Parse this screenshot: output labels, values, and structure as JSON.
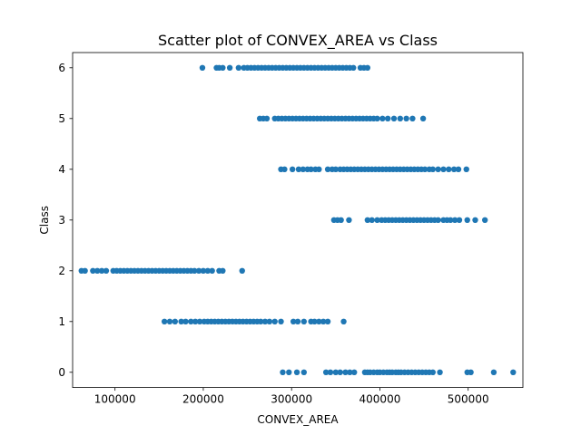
{
  "chart_data": {
    "type": "scatter",
    "title": "Scatter plot of CONVEX_AREA vs Class",
    "xlabel": "CONVEX_AREA",
    "ylabel": "Class",
    "xlim": [
      52000,
      562000
    ],
    "ylim": [
      -0.3,
      6.3
    ],
    "xticks": [
      100000,
      200000,
      300000,
      400000,
      500000
    ],
    "xtick_labels": [
      "100000",
      "200000",
      "300000",
      "400000",
      "500000"
    ],
    "yticks": [
      0,
      1,
      2,
      3,
      4,
      5,
      6
    ],
    "ytick_labels": [
      "0",
      "1",
      "2",
      "3",
      "4",
      "5",
      "6"
    ],
    "grid": false,
    "point_color": "#1f77b4",
    "series": [
      {
        "y": 0,
        "x": [
          290000,
          297000,
          306000,
          314000,
          339000,
          344000,
          350000,
          355000,
          361000,
          366000,
          371000,
          383000,
          386000,
          389000,
          393000,
          397000,
          400000,
          404000,
          408000,
          411000,
          414000,
          418000,
          421000,
          424000,
          428000,
          432000,
          436000,
          440000,
          444000,
          448000,
          452000,
          456000,
          460000,
          468000,
          499000,
          503000,
          529000,
          551000
        ]
      },
      {
        "y": 1,
        "x": [
          156000,
          162000,
          168000,
          175000,
          180000,
          186000,
          191000,
          196000,
          201000,
          205000,
          209000,
          213000,
          217000,
          221000,
          225000,
          229000,
          233000,
          237000,
          241000,
          245000,
          249000,
          253000,
          257000,
          261000,
          265000,
          270000,
          275000,
          281000,
          288000,
          302000,
          307000,
          314000,
          322000,
          326000,
          331000,
          336000,
          341000,
          359000
        ]
      },
      {
        "y": 2,
        "x": [
          62000,
          66000,
          75000,
          80000,
          85000,
          90000,
          98000,
          102000,
          106000,
          110000,
          114000,
          118000,
          122000,
          126000,
          130000,
          134000,
          138000,
          142000,
          146000,
          150000,
          154000,
          158000,
          162000,
          166000,
          170000,
          174000,
          178000,
          182000,
          186000,
          190000,
          195000,
          200000,
          205000,
          210000,
          218000,
          222000,
          244000
        ]
      },
      {
        "y": 3,
        "x": [
          348000,
          352000,
          356000,
          365000,
          386000,
          391000,
          397000,
          402000,
          406000,
          410000,
          414000,
          418000,
          422000,
          426000,
          430000,
          434000,
          438000,
          442000,
          446000,
          450000,
          454000,
          458000,
          462000,
          466000,
          472000,
          476000,
          480000,
          485000,
          490000,
          499000,
          508000,
          519000
        ]
      },
      {
        "y": 4,
        "x": [
          288000,
          292000,
          301000,
          308000,
          313000,
          318000,
          322000,
          327000,
          331000,
          341000,
          346000,
          350000,
          355000,
          359000,
          363000,
          367000,
          371000,
          375000,
          379000,
          383000,
          387000,
          391000,
          395000,
          399000,
          403000,
          407000,
          411000,
          415000,
          419000,
          423000,
          427000,
          431000,
          435000,
          439000,
          443000,
          447000,
          451000,
          456000,
          460000,
          466000,
          472000,
          478000,
          484000,
          489000,
          498000
        ]
      },
      {
        "y": 5,
        "x": [
          264000,
          268000,
          272000,
          281000,
          285000,
          289000,
          293000,
          297000,
          301000,
          305000,
          309000,
          313000,
          317000,
          321000,
          325000,
          329000,
          333000,
          337000,
          341000,
          345000,
          349000,
          353000,
          357000,
          361000,
          365000,
          369000,
          373000,
          377000,
          381000,
          385000,
          389000,
          393000,
          397000,
          403000,
          409000,
          416000,
          423000,
          430000,
          437000,
          449000
        ]
      },
      {
        "y": 6,
        "x": [
          199000,
          215000,
          218000,
          222000,
          230000,
          240000,
          246000,
          250000,
          254000,
          258000,
          262000,
          266000,
          270000,
          274000,
          278000,
          282000,
          286000,
          290000,
          294000,
          298000,
          302000,
          306000,
          310000,
          314000,
          318000,
          322000,
          326000,
          330000,
          334000,
          338000,
          342000,
          346000,
          350000,
          354000,
          358000,
          362000,
          366000,
          370000,
          378000,
          382000,
          386000
        ]
      }
    ]
  }
}
